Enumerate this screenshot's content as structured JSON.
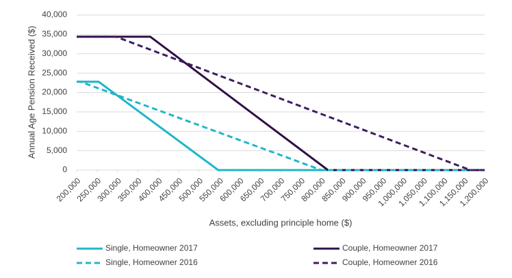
{
  "chart_data": {
    "type": "line",
    "y_label": "Annual Age Pension Received ($)",
    "x_label": "Assets, excluding principle home ($)",
    "xlim": [
      200000,
      1200000
    ],
    "xticks": [
      {
        "value": 200000,
        "label": "200,000"
      },
      {
        "value": 250000,
        "label": "250,000"
      },
      {
        "value": 300000,
        "label": "300,000"
      },
      {
        "value": 350000,
        "label": "350,000"
      },
      {
        "value": 400000,
        "label": "400,000"
      },
      {
        "value": 450000,
        "label": "450,000"
      },
      {
        "value": 500000,
        "label": "500,000"
      },
      {
        "value": 550000,
        "label": "550,000"
      },
      {
        "value": 600000,
        "label": "600,000"
      },
      {
        "value": 650000,
        "label": "650,000"
      },
      {
        "value": 700000,
        "label": "700,000"
      },
      {
        "value": 750000,
        "label": "750,000"
      },
      {
        "value": 800000,
        "label": "800,000"
      },
      {
        "value": 850000,
        "label": "850,000"
      },
      {
        "value": 900000,
        "label": "900,000"
      },
      {
        "value": 950000,
        "label": "950,000"
      },
      {
        "value": 1000000,
        "label": "1,000,000"
      },
      {
        "value": 1050000,
        "label": "1,050,000"
      },
      {
        "value": 1100000,
        "label": "1,100,000"
      },
      {
        "value": 1150000,
        "label": "1,150,000"
      },
      {
        "value": 1200000,
        "label": "1,200,000"
      }
    ],
    "ylim": [
      0,
      40000
    ],
    "yticks": [
      0,
      {
        "value": 5000,
        "label": "5,000"
      },
      {
        "value": 10000,
        "label": "10,000"
      },
      {
        "value": 15000,
        "label": "15,000"
      },
      {
        "value": 20000,
        "label": "20,000"
      },
      {
        "value": 25000,
        "label": "25,000"
      },
      {
        "value": 30000,
        "label": "30,000"
      },
      {
        "value": 35000,
        "label": "35,000"
      },
      {
        "value": 40000,
        "label": "40,000"
      }
    ],
    "grid": true,
    "legend": "bottom",
    "series": [
      {
        "name": "Single, Homeowner 2017",
        "color": "#1fb6c9",
        "dash": false,
        "x": [
          200000,
          253750,
          547000,
          1200000
        ],
        "values": [
          22800,
          22800,
          0,
          0
        ]
      },
      {
        "name": "Couple, Homeowner 2017",
        "color": "#2e1046",
        "dash": false,
        "x": [
          200000,
          380500,
          816000,
          1200000
        ],
        "values": [
          34400,
          34400,
          0,
          0
        ]
      },
      {
        "name": "Single, Homeowner 2016",
        "color": "#1fb6c9",
        "dash": true,
        "x": [
          200000,
          209000,
          800000,
          1200000
        ],
        "values": [
          22800,
          22800,
          0,
          0
        ]
      },
      {
        "name": "Couple, Homeowner 2016",
        "color": "#3d1d5e",
        "dash": true,
        "x": [
          200000,
          296500,
          1165000,
          1200000
        ],
        "values": [
          34400,
          34400,
          0,
          0
        ]
      }
    ]
  }
}
